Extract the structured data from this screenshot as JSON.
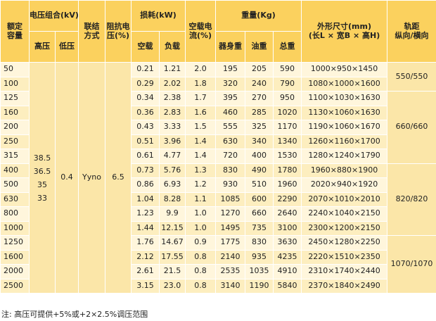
{
  "header": {
    "capacity": "额定\n容量",
    "voltage_group": "电压组合(kV)",
    "hv": "高压",
    "lv": "低压",
    "connection": "联结\n方式",
    "impedance": "阻抗电\n压(%)",
    "loss": "损耗(kW)",
    "no_load": "空载",
    "load": "负载",
    "no_load_current": "空载电\n流(%)",
    "weight": "重量(Kg)",
    "body_weight": "器身重",
    "oil_weight": "油重",
    "total_weight": "总重",
    "dimensions": "外形尺寸(mm)\n(长L × 宽B × 高H)",
    "gauge": "轨距\n纵向/横向"
  },
  "rows": [
    {
      "cap": "50",
      "nl": "0.21",
      "ld": "1.21",
      "cur": "2.0",
      "bw": "195",
      "ow": "205",
      "tw": "590",
      "dim": "1000×950×1450"
    },
    {
      "cap": "100",
      "nl": "0.29",
      "ld": "2.02",
      "cur": "1.8",
      "bw": "320",
      "ow": "240",
      "tw": "790",
      "dim": "1080×1000×1600"
    },
    {
      "cap": "125",
      "nl": "0.34",
      "ld": "2.38",
      "cur": "1.7",
      "bw": "395",
      "ow": "270",
      "tw": "950",
      "dim": "1100×1030×1630"
    },
    {
      "cap": "160",
      "nl": "0.36",
      "ld": "2.83",
      "cur": "1.6",
      "bw": "460",
      "ow": "285",
      "tw": "1020",
      "dim": "1130×1060×1630"
    },
    {
      "cap": "200",
      "nl": "0.43",
      "ld": "3.33",
      "cur": "1.5",
      "bw": "555",
      "ow": "325",
      "tw": "1170",
      "dim": "1190×1060×1670"
    },
    {
      "cap": "250",
      "nl": "0.51",
      "ld": "3.96",
      "cur": "1.4",
      "bw": "630",
      "ow": "340",
      "tw": "1340",
      "dim": "1260×1160×1700"
    },
    {
      "cap": "315",
      "nl": "0.61",
      "ld": "4.77",
      "cur": "1.4",
      "bw": "720",
      "ow": "400",
      "tw": "1530",
      "dim": "1280×1240×1790"
    },
    {
      "cap": "400",
      "nl": "0.73",
      "ld": "5.76",
      "cur": "1.3",
      "bw": "830",
      "ow": "490",
      "tw": "1780",
      "dim": "1960×880×1900"
    },
    {
      "cap": "500",
      "nl": "0.86",
      "ld": "6.93",
      "cur": "1.2",
      "bw": "930",
      "ow": "510",
      "tw": "1960",
      "dim": "2020×940×1920"
    },
    {
      "cap": "630",
      "nl": "1.04",
      "ld": "8.28",
      "cur": "1.1",
      "bw": "1085",
      "ow": "600",
      "tw": "2290",
      "dim": "2070×1010×2010"
    },
    {
      "cap": "800",
      "nl": "1.23",
      "ld": "9.9",
      "cur": "1.0",
      "bw": "1270",
      "ow": "660",
      "tw": "2640",
      "dim": "2240×1040×2150"
    },
    {
      "cap": "1000",
      "nl": "1.44",
      "ld": "12.15",
      "cur": "1.0",
      "bw": "1495",
      "ow": "735",
      "tw": "3100",
      "dim": "2300×1200×2150"
    },
    {
      "cap": "1250",
      "nl": "1.76",
      "ld": "14.67",
      "cur": "0.9",
      "bw": "1775",
      "ow": "830",
      "tw": "3630",
      "dim": "2450×1280×2250"
    },
    {
      "cap": "1600",
      "nl": "2.12",
      "ld": "17.55",
      "cur": "0.8",
      "bw": "2140",
      "ow": "935",
      "tw": "4235",
      "dim": "2220×1510×2350"
    },
    {
      "cap": "2000",
      "nl": "2.61",
      "ld": "21.5",
      "cur": "0.8",
      "bw": "2535",
      "ow": "1035",
      "tw": "4910",
      "dim": "2310×1740×2440"
    },
    {
      "cap": "2500",
      "nl": "3.15",
      "ld": "23.0",
      "cur": "0.8",
      "bw": "3140",
      "ow": "1190",
      "tw": "5840",
      "dim": "2370×1840×2490"
    }
  ],
  "hv_values": [
    "38.5",
    "36.5",
    "35",
    "33"
  ],
  "lv_value": "0.4",
  "connection_value": "Yyno",
  "impedance_value": "6.5",
  "gauges": [
    "550/550",
    "660/660",
    "820/820",
    "1070/1070"
  ],
  "note": "注: 高压可提供+5%或+2×2.5%调压范围"
}
